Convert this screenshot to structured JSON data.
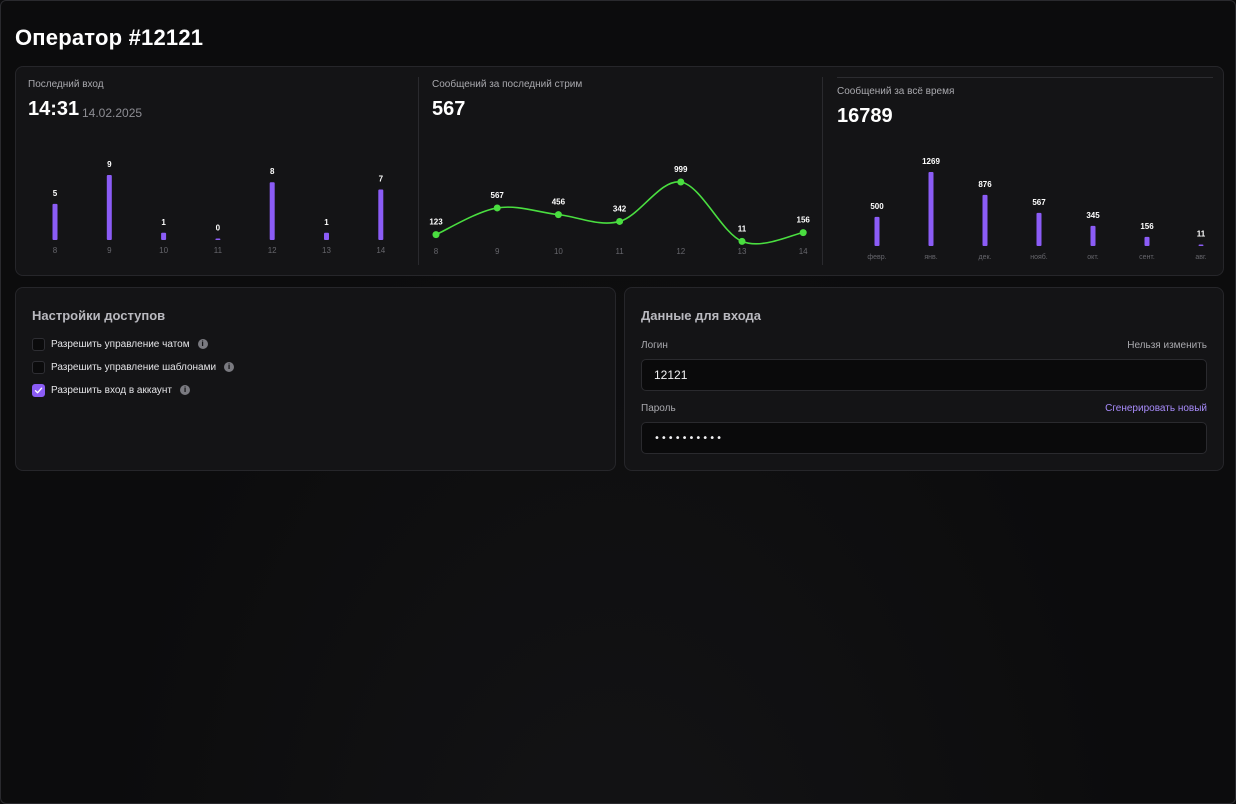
{
  "page": {
    "title": "Оператор #12121"
  },
  "stats": {
    "last_login": {
      "label": "Последний вход",
      "time": "14:31",
      "date": "14.02.2025"
    },
    "last_stream": {
      "label": "Сообщений за последний стрим",
      "value": "567"
    },
    "all_time": {
      "label": "Сообщений за всё время",
      "value": "16789"
    }
  },
  "chart_data": [
    {
      "type": "bar",
      "categories": [
        "8",
        "9",
        "10",
        "11",
        "12",
        "13",
        "14"
      ],
      "values": [
        5,
        9,
        1,
        0,
        8,
        1,
        7
      ],
      "color": "#8b5cf6"
    },
    {
      "type": "line",
      "categories": [
        "8",
        "9",
        "10",
        "11",
        "12",
        "13",
        "14"
      ],
      "values": [
        123,
        567,
        456,
        342,
        999,
        11,
        156
      ],
      "color": "#4ade40"
    },
    {
      "type": "bar",
      "categories": [
        "февр.",
        "янв.",
        "дек.",
        "нояб.",
        "окт.",
        "сент.",
        "авг."
      ],
      "values": [
        500,
        1269,
        876,
        567,
        345,
        156,
        11
      ],
      "color": "#8b5cf6"
    }
  ],
  "access": {
    "title": "Настройки доступов",
    "items": [
      {
        "label": "Разрешить управление чатом",
        "checked": false
      },
      {
        "label": "Разрешить управление шаблонами",
        "checked": false
      },
      {
        "label": "Разрешить вход в аккаунт",
        "checked": true
      }
    ]
  },
  "login": {
    "title": "Данные для входа",
    "login_label": "Логин",
    "login_hint": "Нельзя изменить",
    "login_value": "12121",
    "password_label": "Пароль",
    "password_action": "Сгенерировать новый",
    "password_value": "••••••••••"
  },
  "colors": {
    "accent": "#8b5cf6",
    "line": "#4ade40",
    "link": "#a78bfa"
  }
}
